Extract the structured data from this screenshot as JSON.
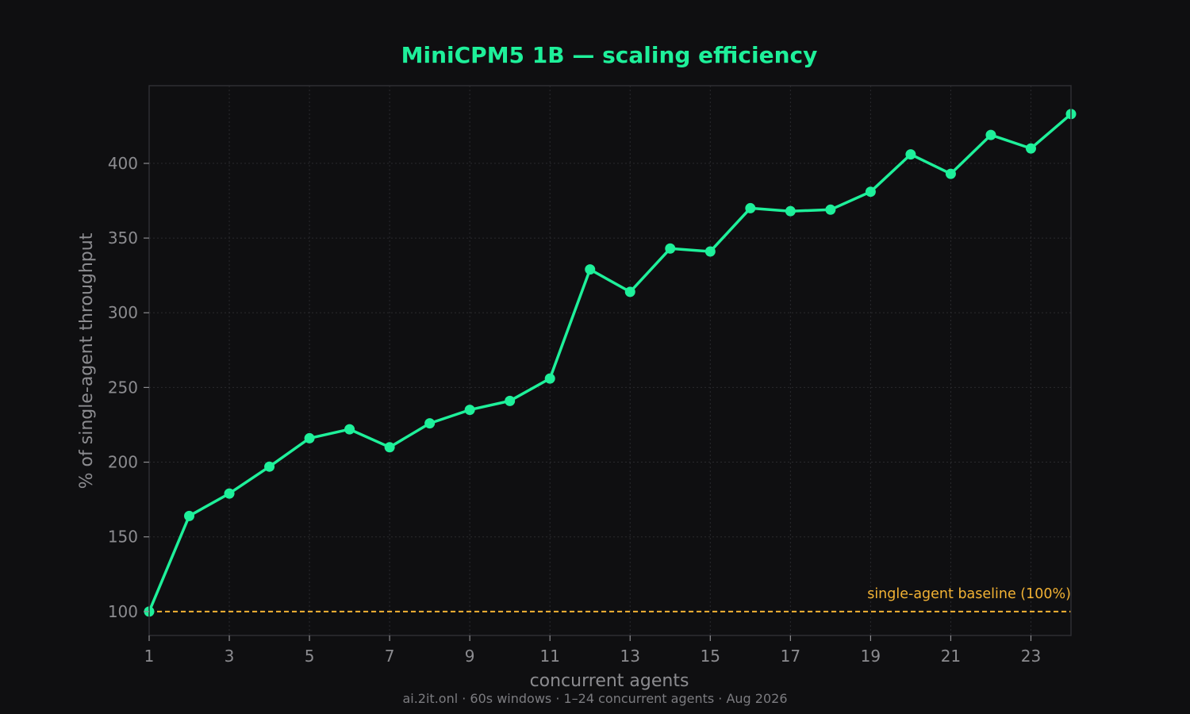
{
  "chart_data": {
    "type": "line",
    "title": "MiniCPM5 1B — scaling efficiency",
    "xlabel": "concurrent agents",
    "ylabel": "% of single-agent throughput",
    "footer": "ai.2it.onl · 60s windows · 1–24 concurrent agents · Aug 2026",
    "xlim": [
      1,
      24
    ],
    "ylim": [
      84,
      452
    ],
    "x_ticks": [
      1,
      3,
      5,
      7,
      9,
      11,
      13,
      15,
      17,
      19,
      21,
      23
    ],
    "y_ticks": [
      100,
      150,
      200,
      250,
      300,
      350,
      400
    ],
    "grid": true,
    "x": [
      1,
      2,
      3,
      4,
      5,
      6,
      7,
      8,
      9,
      10,
      11,
      12,
      13,
      14,
      15,
      16,
      17,
      18,
      19,
      20,
      21,
      22,
      23,
      24
    ],
    "series": [
      {
        "values": [
          100,
          164,
          179,
          197,
          216,
          222,
          210,
          226,
          235,
          241,
          256,
          329,
          314,
          343,
          341,
          370,
          368,
          369,
          381,
          406,
          393,
          419,
          410,
          433
        ]
      }
    ],
    "baseline": {
      "value": 100,
      "label": "single-agent baseline (100%)"
    },
    "colors": {
      "background": "#0f0f11",
      "series": "#1ef09a",
      "title": "#1ef09a",
      "baseline": "#f2b234",
      "grid": "#2a2a2e",
      "frame": "#2e2e32",
      "text": "#8c8c90"
    }
  }
}
